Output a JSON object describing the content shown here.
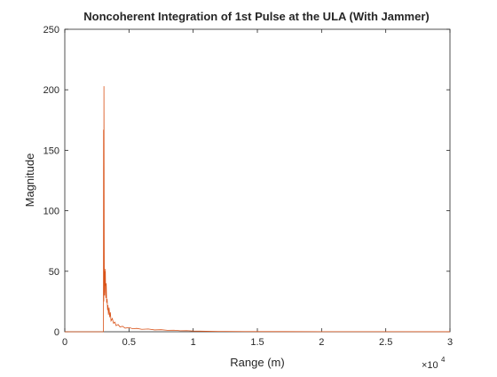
{
  "chart_data": {
    "type": "line",
    "title": "Noncoherent Integration of 1st Pulse at the ULA (With Jammer)",
    "xlabel": "Range (m)",
    "ylabel": "Magnitude",
    "xlim": [
      0,
      30000
    ],
    "ylim": [
      0,
      250
    ],
    "x_exponent_label": "×10",
    "x_exponent_power": "4",
    "xticks": [
      0,
      5000,
      10000,
      15000,
      20000,
      25000,
      30000
    ],
    "xtick_labels": [
      "0",
      "0.5",
      "1",
      "1.5",
      "2",
      "2.5",
      "3"
    ],
    "yticks": [
      0,
      50,
      100,
      150,
      200,
      250
    ],
    "ytick_labels": [
      "0",
      "50",
      "100",
      "150",
      "200",
      "250"
    ],
    "grid": false,
    "colors": {
      "axes": "#262626",
      "series": "#d95319"
    },
    "series": [
      {
        "color": "#d95319",
        "points": [
          [
            0,
            0
          ],
          [
            3000,
            0
          ],
          [
            3010,
            20
          ],
          [
            3020,
            167
          ],
          [
            3030,
            60
          ],
          [
            3040,
            25
          ],
          [
            3050,
            203
          ],
          [
            3060,
            140
          ],
          [
            3070,
            80
          ],
          [
            3080,
            45
          ],
          [
            3100,
            30
          ],
          [
            3120,
            50
          ],
          [
            3140,
            38
          ],
          [
            3160,
            52
          ],
          [
            3180,
            33
          ],
          [
            3200,
            28
          ],
          [
            3230,
            40
          ],
          [
            3260,
            24
          ],
          [
            3300,
            27
          ],
          [
            3330,
            18
          ],
          [
            3360,
            22
          ],
          [
            3400,
            14
          ],
          [
            3450,
            20
          ],
          [
            3500,
            12
          ],
          [
            3550,
            16
          ],
          [
            3600,
            9
          ],
          [
            3700,
            11
          ],
          [
            3800,
            7
          ],
          [
            3900,
            8
          ],
          [
            4000,
            5
          ],
          [
            4150,
            6
          ],
          [
            4300,
            4
          ],
          [
            4500,
            4.5
          ],
          [
            4700,
            3
          ],
          [
            5000,
            3.5
          ],
          [
            5300,
            2.5
          ],
          [
            5600,
            2.8
          ],
          [
            6000,
            2
          ],
          [
            6500,
            2.3
          ],
          [
            7000,
            1.5
          ],
          [
            7500,
            1.7
          ],
          [
            8000,
            1.2
          ],
          [
            8500,
            1.3
          ],
          [
            9000,
            0.8
          ],
          [
            9500,
            0.9
          ],
          [
            10000,
            0.6
          ],
          [
            11000,
            0.4
          ],
          [
            12000,
            0.3
          ],
          [
            14000,
            0.2
          ],
          [
            17000,
            0.15
          ],
          [
            20000,
            0.1
          ],
          [
            25000,
            0.08
          ],
          [
            30000,
            0.05
          ]
        ]
      }
    ]
  }
}
